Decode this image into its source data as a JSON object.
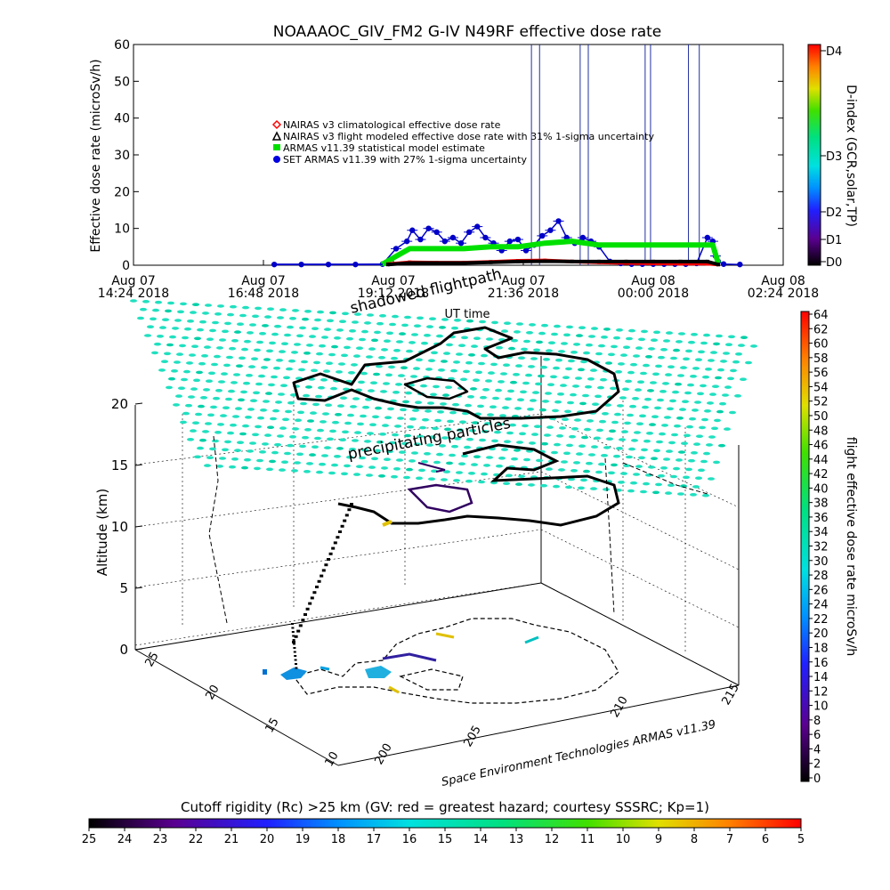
{
  "chart_data": [
    {
      "type": "line",
      "title": "NOAAAOC_GIV_FM2 G-IV    N49RF  effective dose rate",
      "ylabel": "Effective dose rate (microSv/h)",
      "xlabel": "UT time",
      "ylim": [
        0,
        60
      ],
      "yticks": [
        "0",
        "10",
        "20",
        "30",
        "40",
        "50",
        "60"
      ],
      "xticks": [
        {
          "top": "Aug 07",
          "bottom": "14:24 2018"
        },
        {
          "top": "Aug 07",
          "bottom": "16:48 2018"
        },
        {
          "top": "Aug 07",
          "bottom": "19:12 2018"
        },
        {
          "top": "Aug 07",
          "bottom": "21:36 2018"
        },
        {
          "top": "Aug 08",
          "bottom": "00:00 2018"
        },
        {
          "top": "Aug 08",
          "bottom": "02:24 2018"
        }
      ],
      "x_hours_range": [
        14.4,
        26.4
      ],
      "legend": [
        {
          "label": "NAIRAS v3 climatological effective dose rate",
          "color": "#ff0000",
          "marker": "diamond"
        },
        {
          "label": "NAIRAS v3 flight modeled effective dose rate with 31% 1-sigma uncertainty",
          "color": "#000000",
          "marker": "triangle"
        },
        {
          "label": "ARMAS v11.39 statistical model estimate",
          "color": "#00e000",
          "marker": "square"
        },
        {
          "label": "SET ARMAS v11.39 with 27% 1-sigma uncertainty",
          "color": "#0000e0",
          "marker": "circle"
        }
      ],
      "series": [
        {
          "name": "SET ARMAS v11.39 with 27% 1-sigma uncertainty",
          "color": "#0000c8",
          "x": [
            17.0,
            17.5,
            18.0,
            18.5,
            19.0,
            19.25,
            19.45,
            19.55,
            19.7,
            19.85,
            20.0,
            20.15,
            20.3,
            20.45,
            20.6,
            20.75,
            20.9,
            21.05,
            21.2,
            21.35,
            21.5,
            21.65,
            21.8,
            21.95,
            22.1,
            22.25,
            22.4,
            22.55,
            22.7,
            22.85,
            23.0,
            23.2,
            23.4,
            23.6,
            23.8,
            24.0,
            24.2,
            24.4,
            24.6,
            24.8,
            25.0,
            25.1,
            25.15,
            25.2,
            25.3,
            25.6
          ],
          "y": [
            0.2,
            0.2,
            0.2,
            0.2,
            0.3,
            4.5,
            6.5,
            9.5,
            7.0,
            10.0,
            9.0,
            6.5,
            7.5,
            6.0,
            9.0,
            10.5,
            7.5,
            6.0,
            4.0,
            6.5,
            7.0,
            4.0,
            5.5,
            8.0,
            9.5,
            12.0,
            7.5,
            6.0,
            7.5,
            6.5,
            5.0,
            1.0,
            0.5,
            0.3,
            0.3,
            0.3,
            0.3,
            0.3,
            0.3,
            0.5,
            7.5,
            6.5,
            2.5,
            1.0,
            0.3,
            0.2
          ]
        },
        {
          "name": "ARMAS v11.39 statistical model estimate",
          "color": "#00e000",
          "x": [
            19.0,
            19.2,
            19.5,
            20.0,
            20.5,
            21.0,
            21.5,
            22.0,
            22.5,
            23.0,
            23.5,
            24.0,
            24.5,
            25.0,
            25.1,
            25.2
          ],
          "y": [
            0.3,
            2.0,
            4.5,
            4.5,
            4.5,
            5.0,
            5.0,
            6.0,
            6.5,
            5.5,
            5.5,
            5.5,
            5.5,
            5.5,
            5.5,
            0.5
          ]
        },
        {
          "name": "NAIRAS v3 climatological effective dose rate",
          "color": "#ff0000",
          "x": [
            19.1,
            19.5,
            20.0,
            20.5,
            21.0,
            21.5,
            22.0,
            22.5,
            23.0,
            23.5,
            24.0,
            24.5,
            25.0,
            25.2
          ],
          "y": [
            0.3,
            0.8,
            0.7,
            0.7,
            0.9,
            1.2,
            1.3,
            1.0,
            0.8,
            0.6,
            0.5,
            0.4,
            0.4,
            0.2
          ]
        },
        {
          "name": "NAIRAS v3 flight modeled effective dose rate with 31% 1-sigma uncertainty",
          "color": "#000000",
          "x": [
            19.1,
            19.5,
            20.0,
            20.5,
            21.0,
            21.5,
            22.0,
            22.5,
            23.0,
            23.5,
            24.0,
            24.5,
            25.0,
            25.2
          ],
          "y": [
            0.2,
            0.6,
            0.6,
            0.6,
            0.8,
            1.0,
            1.1,
            1.0,
            1.0,
            1.0,
            1.0,
            1.0,
            1.0,
            0.2
          ]
        }
      ],
      "spikes_x": [
        21.75,
        21.9,
        22.65,
        22.8,
        23.85,
        23.95,
        24.65,
        24.85
      ],
      "right_axis": {
        "label": "D-index (GCR,solar,TP)",
        "ticks": [
          "D0",
          "D1",
          "D2",
          "D3",
          "D4"
        ],
        "colors": [
          "#000000",
          "#7000a0",
          "#0030ff",
          "#00d8e0",
          "#30d060",
          "#a0e000",
          "#ffa000",
          "#ff2000"
        ]
      }
    },
    {
      "type": "scatter",
      "subtitle": "Space Environment Technologies ARMAS v11.39",
      "ylabel": "Altitude (km)",
      "zlim": [
        0,
        20
      ],
      "zticks": [
        "0",
        "5",
        "10",
        "15",
        "20"
      ],
      "lat_ticks": [
        "10",
        "15",
        "20",
        "25"
      ],
      "lon_ticks": [
        "200",
        "205",
        "210",
        "215"
      ],
      "annotations": [
        "shadowed flightpath",
        "precipitating particles"
      ],
      "dose_colorbar": {
        "label": "flight effective dose rate microSv/h",
        "ticks": [
          "0",
          "2",
          "4",
          "6",
          "8",
          "10",
          "12",
          "14",
          "16",
          "18",
          "20",
          "22",
          "24",
          "26",
          "28",
          "30",
          "32",
          "34",
          "36",
          "38",
          "40",
          "42",
          "44",
          "46",
          "48",
          "50",
          "52",
          "54",
          "56",
          "58",
          "60",
          "62",
          "64"
        ]
      },
      "rigidity_colorbar": {
        "label": "Cutoff rigidity (Rc) >25 km (GV: red = greatest hazard; courtesy SSSRC; Kp=1)",
        "ticks": [
          "25",
          "24",
          "23",
          "22",
          "21",
          "20",
          "19",
          "18",
          "17",
          "16",
          "15",
          "14",
          "13",
          "12",
          "11",
          "10",
          "9",
          "8",
          "7",
          "6",
          "5"
        ]
      }
    }
  ]
}
